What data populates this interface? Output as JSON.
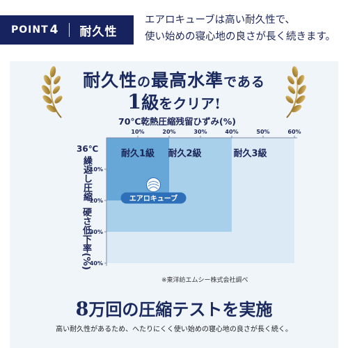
{
  "header": {
    "point_word": "POINT",
    "point_number": "4",
    "title": "耐久性",
    "description_line1": "エアロキューブは高い耐久性で、",
    "description_line2": "使い始めの寝心地の良さが長く続きます。"
  },
  "headline": {
    "line1_a": "耐久性",
    "line1_no": "の",
    "line1_b": "最高水準",
    "line1_c": "である",
    "line2_num": "1",
    "line2_a": "級",
    "line2_b": "をクリア!"
  },
  "chart": {
    "x_axis_title": "70℃乾熱圧縮残留ひずみ(%)",
    "y_axis_temp": "36℃",
    "y_axis_title_1": "繰返し圧縮",
    "y_axis_title_2": "硬さ低下率(%)",
    "source_note": "※東洋紡エムシー株式会社調べ",
    "product_badge": "エアロキューブ",
    "colors": {
      "grade1": "#66a7d8",
      "grade2": "#a8d0ea",
      "grade3": "#dceaf6",
      "text": "#1b2558"
    }
  },
  "chart_data": {
    "type": "heatmap",
    "x_ticks": [
      "10%",
      "20%",
      "30%",
      "40%",
      "50%",
      "60%"
    ],
    "y_ticks": [
      "10%",
      "20%",
      "30%",
      "40%"
    ],
    "xlim": [
      0,
      60
    ],
    "ylim": [
      0,
      40
    ],
    "regions": [
      {
        "label": "耐久1級",
        "x_max": 20,
        "y_max": 20
      },
      {
        "label": "耐久2級",
        "x_max": 40,
        "y_max": 30
      },
      {
        "label": "耐久3級",
        "x_max": 60,
        "y_max": 40
      }
    ],
    "product_point": {
      "label": "エアロキューブ",
      "x": 15,
      "y": 15
    }
  },
  "footer": {
    "tagline_num": "8",
    "tagline_text": "万回の圧縮テストを実施",
    "subline": "高い耐久性があるため、へたりにくく使い始めの寝心地の良さが長く続く。"
  }
}
